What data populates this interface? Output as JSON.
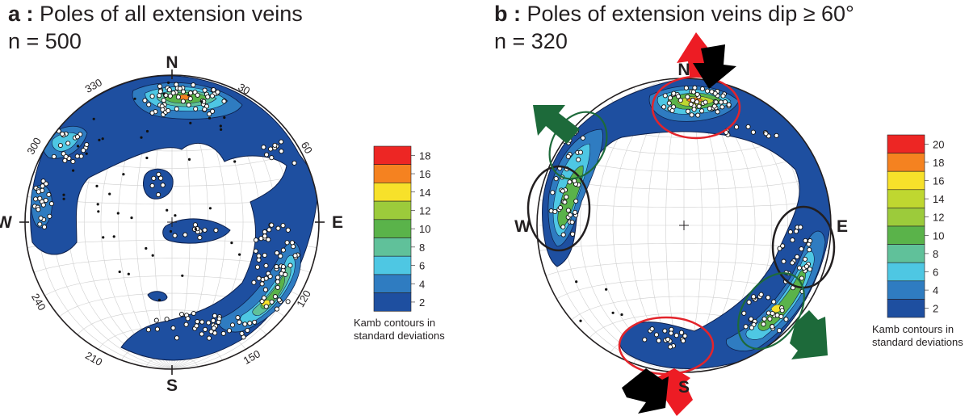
{
  "chart_data": [
    {
      "type": "stereonet",
      "panel_letter": "a",
      "title": "Poles of all extension veins",
      "n_label": "n = 500",
      "directions": [
        "N",
        "E",
        "S",
        "W"
      ],
      "azimuth_ticks": [
        "30",
        "60",
        "120",
        "150",
        "210",
        "240",
        "300",
        "330"
      ],
      "legend_title": [
        "Kamb contours in",
        "standard deviations"
      ],
      "contour_levels": [
        "18",
        "16",
        "14",
        "12",
        "10",
        "8",
        "6",
        "4",
        "2"
      ],
      "contour_colors": [
        "#ed2624",
        "#f58220",
        "#f7e12a",
        "#9ccb3b",
        "#5ab34a",
        "#60c19a",
        "#4ec7e3",
        "#2f7cc1",
        "#1e4fa0"
      ]
    },
    {
      "type": "stereonet",
      "panel_letter": "b",
      "title": "Poles of extension veins dip ≥ 60°",
      "n_label": "n = 320",
      "directions": [
        "N",
        "E",
        "S",
        "W"
      ],
      "legend_title": [
        "Kamb contours in",
        "standard deviations"
      ],
      "contour_levels": [
        "20",
        "18",
        "16",
        "14",
        "12",
        "10",
        "8",
        "6",
        "4",
        "2"
      ],
      "contour_colors": [
        "#ed2624",
        "#f58220",
        "#f7e12a",
        "#bfd730",
        "#9ccb3b",
        "#5ab34a",
        "#60c19a",
        "#4ec7e3",
        "#2f7cc1",
        "#1e4fa0"
      ]
    }
  ],
  "colors": {
    "ink": "#231f20",
    "grid": "#c8c8c8",
    "compression_red": "#ed1c24",
    "compression_black": "#000000",
    "extension_green": "#1d6a3a"
  }
}
